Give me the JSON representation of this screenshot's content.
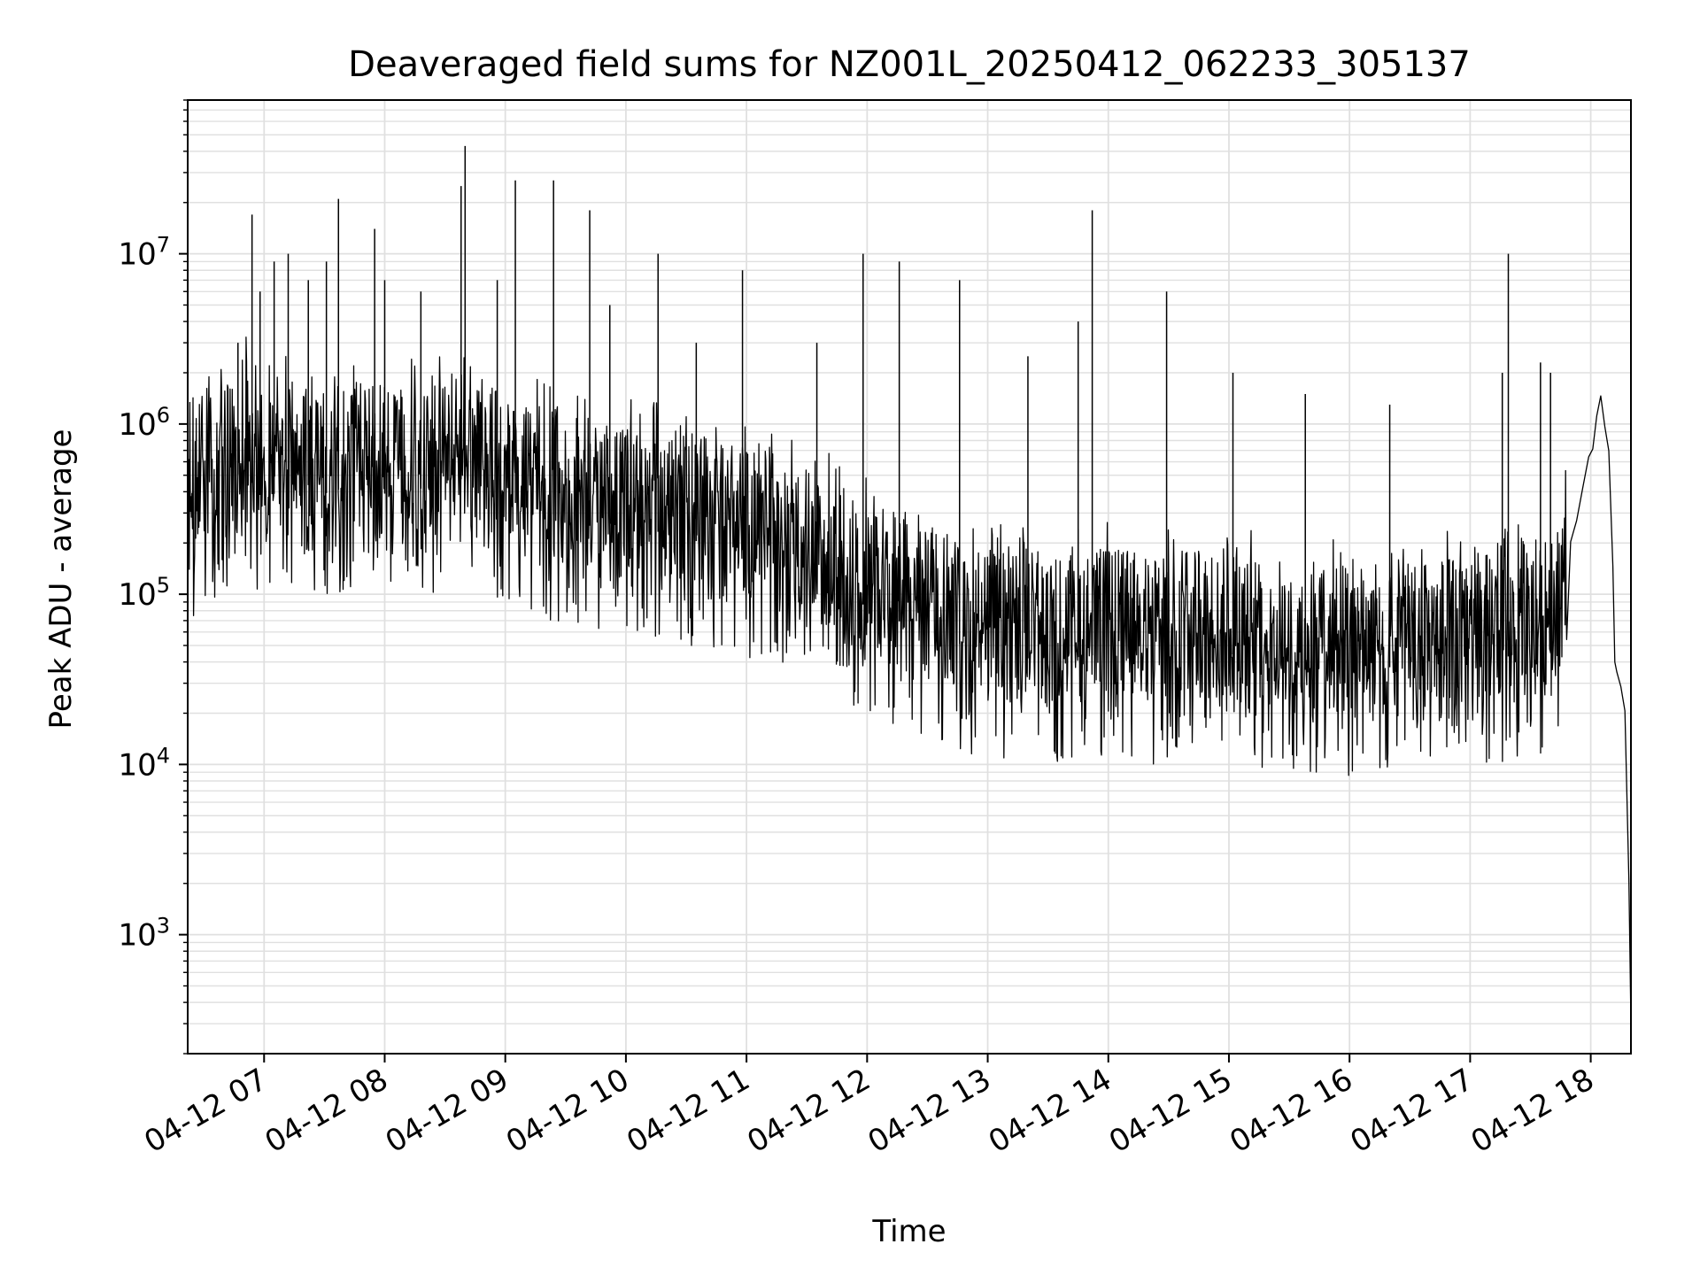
{
  "chart_data": {
    "type": "line",
    "title": "Deaveraged field sums for NZ001L_20250412_062233_305137",
    "xlabel": "Time",
    "ylabel": "Peak ADU - average",
    "x_scale": "time",
    "y_scale": "log",
    "xlim": [
      "2025-04-12 06:22",
      "2025-04-12 18:20"
    ],
    "ylim": [
      200,
      80000000
    ],
    "x_ticks": [
      "04-12 07",
      "04-12 08",
      "04-12 09",
      "04-12 10",
      "04-12 11",
      "04-12 12",
      "04-12 13",
      "04-12 14",
      "04-12 15",
      "04-12 16",
      "04-12 17",
      "04-12 18"
    ],
    "y_ticks": [
      {
        "value": 1000,
        "base": "10",
        "exp": "3"
      },
      {
        "value": 10000,
        "base": "10",
        "exp": "4"
      },
      {
        "value": 100000,
        "base": "10",
        "exp": "5"
      },
      {
        "value": 1000000,
        "base": "10",
        "exp": "6"
      },
      {
        "value": 10000000,
        "base": "10",
        "exp": "7"
      }
    ],
    "grid": true,
    "line_color": "#000000",
    "grid_color": "#e0e0e0",
    "series": [
      {
        "x": [
          "2025-04-12 06:22",
          "2025-04-12 06:30",
          "2025-04-12 06:40",
          "2025-04-12 06:45",
          "2025-04-12 06:50",
          "2025-04-12 06:55",
          "2025-04-12 07:00",
          "2025-04-12 07:10",
          "2025-04-12 07:20",
          "2025-04-12 07:30",
          "2025-04-12 07:40",
          "2025-04-12 07:50",
          "2025-04-12 08:00",
          "2025-04-12 08:20",
          "2025-04-12 08:40",
          "2025-04-12 09:00",
          "2025-04-12 09:20",
          "2025-04-12 09:40",
          "2025-04-12 10:00",
          "2025-04-12 10:20",
          "2025-04-12 10:40",
          "2025-04-12 11:00",
          "2025-04-12 11:20",
          "2025-04-12 11:40",
          "2025-04-12 12:00",
          "2025-04-12 12:20",
          "2025-04-12 12:40",
          "2025-04-12 13:00",
          "2025-04-12 13:20",
          "2025-04-12 13:40",
          "2025-04-12 14:00",
          "2025-04-12 14:20",
          "2025-04-12 14:40",
          "2025-04-12 15:00",
          "2025-04-12 15:20",
          "2025-04-12 15:40",
          "2025-04-12 16:00",
          "2025-04-12 16:20",
          "2025-04-12 16:40",
          "2025-04-12 17:00",
          "2025-04-12 17:20",
          "2025-04-12 17:40",
          "2025-04-12 17:50",
          "2025-04-12 18:00",
          "2025-04-12 18:05",
          "2025-04-12 18:10",
          "2025-04-12 18:12",
          "2025-04-12 18:15",
          "2025-04-12 18:18",
          "2025-04-12 18:20"
        ],
        "y": [
          450000,
          600000,
          650000,
          750000,
          1000000,
          700000,
          600000,
          700000,
          750000,
          650000,
          700000,
          720000,
          650000,
          700000,
          800000,
          600000,
          500000,
          450000,
          420000,
          380000,
          330000,
          300000,
          260000,
          200000,
          140000,
          110000,
          90000,
          75000,
          70000,
          70000,
          75000,
          70000,
          70000,
          75000,
          65000,
          60000,
          60000,
          62000,
          65000,
          70000,
          72000,
          75000,
          200000,
          700000,
          1500000,
          500000,
          35000,
          25000,
          18000,
          300
        ]
      }
    ],
    "spikes": [
      {
        "x": "2025-04-12 06:47",
        "y": 3000000
      },
      {
        "x": "2025-04-12 06:54",
        "y": 17000000
      },
      {
        "x": "2025-04-12 06:58",
        "y": 6000000
      },
      {
        "x": "2025-04-12 07:05",
        "y": 9000000
      },
      {
        "x": "2025-04-12 07:12",
        "y": 10000000
      },
      {
        "x": "2025-04-12 07:22",
        "y": 7000000
      },
      {
        "x": "2025-04-12 07:31",
        "y": 9000000
      },
      {
        "x": "2025-04-12 07:37",
        "y": 21000000
      },
      {
        "x": "2025-04-12 07:55",
        "y": 14000000
      },
      {
        "x": "2025-04-12 08:00",
        "y": 7000000
      },
      {
        "x": "2025-04-12 08:18",
        "y": 6000000
      },
      {
        "x": "2025-04-12 08:38",
        "y": 25000000
      },
      {
        "x": "2025-04-12 08:40",
        "y": 43000000
      },
      {
        "x": "2025-04-12 08:56",
        "y": 7000000
      },
      {
        "x": "2025-04-12 09:05",
        "y": 27000000
      },
      {
        "x": "2025-04-12 09:24",
        "y": 27000000
      },
      {
        "x": "2025-04-12 09:42",
        "y": 18000000
      },
      {
        "x": "2025-04-12 09:52",
        "y": 5000000
      },
      {
        "x": "2025-04-12 10:16",
        "y": 10000000
      },
      {
        "x": "2025-04-12 10:35",
        "y": 3000000
      },
      {
        "x": "2025-04-12 10:58",
        "y": 8000000
      },
      {
        "x": "2025-04-12 11:35",
        "y": 3000000
      },
      {
        "x": "2025-04-12 11:58",
        "y": 10000000
      },
      {
        "x": "2025-04-12 12:16",
        "y": 9000000
      },
      {
        "x": "2025-04-12 12:46",
        "y": 7000000
      },
      {
        "x": "2025-04-12 13:20",
        "y": 2500000
      },
      {
        "x": "2025-04-12 13:45",
        "y": 4000000
      },
      {
        "x": "2025-04-12 13:52",
        "y": 18000000
      },
      {
        "x": "2025-04-12 14:29",
        "y": 6000000
      },
      {
        "x": "2025-04-12 15:02",
        "y": 2000000
      },
      {
        "x": "2025-04-12 15:38",
        "y": 1500000
      },
      {
        "x": "2025-04-12 16:20",
        "y": 1300000
      },
      {
        "x": "2025-04-12 17:16",
        "y": 2000000
      },
      {
        "x": "2025-04-12 17:19",
        "y": 10000000
      },
      {
        "x": "2025-04-12 17:35",
        "y": 2300000
      },
      {
        "x": "2025-04-12 17:40",
        "y": 2000000
      }
    ]
  }
}
